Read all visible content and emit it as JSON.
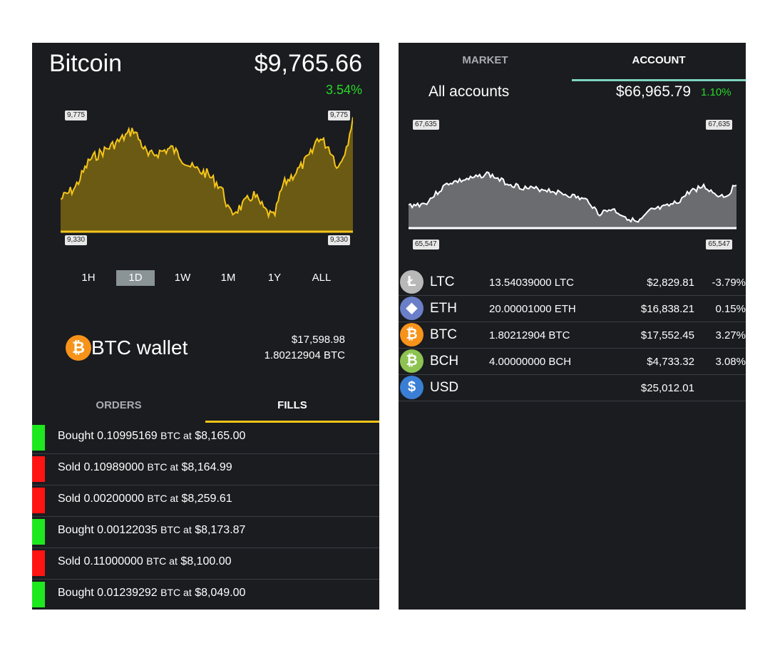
{
  "colors": {
    "background": "#1a1c20",
    "btc_chart": "#f5c518",
    "btc_chart_fill": "#6b5a14",
    "account_chart": "#ffffff",
    "account_chart_fill": "#6a6c70",
    "positive": "#27d827",
    "buy": "#1ee81e",
    "sell": "#ff1414",
    "fills_tab_accent": "#f5c518",
    "account_tab_accent": "#7fd3c0"
  },
  "left": {
    "title": "Bitcoin",
    "price": "$9,765.66",
    "change": "3.54%",
    "chart_labels": {
      "top_left": "9,775",
      "top_right": "9,775",
      "bottom_left": "9,330",
      "bottom_right": "9,330"
    },
    "ranges": [
      "1H",
      "1D",
      "1W",
      "1M",
      "1Y",
      "ALL"
    ],
    "active_range": "1D",
    "wallet": {
      "icon": "bitcoin-icon",
      "label": "BTC wallet",
      "usd": "$17,598.98",
      "btc": "1.80212904 BTC"
    },
    "tabs": [
      "ORDERS",
      "FILLS"
    ],
    "active_tab": "FILLS",
    "fills": [
      {
        "side": "buy",
        "action": "Bought",
        "amount": "0.10995169",
        "unit": "BTC at",
        "price": "$8,165.00"
      },
      {
        "side": "sell",
        "action": "Sold",
        "amount": "0.10989000",
        "unit": "BTC at",
        "price": "$8,164.99"
      },
      {
        "side": "sell",
        "action": "Sold",
        "amount": "0.00200000",
        "unit": "BTC at",
        "price": "$8,259.61"
      },
      {
        "side": "buy",
        "action": "Bought",
        "amount": "0.00122035",
        "unit": "BTC at",
        "price": "$8,173.87"
      },
      {
        "side": "sell",
        "action": "Sold",
        "amount": "0.11000000",
        "unit": "BTC at",
        "price": "$8,100.00"
      },
      {
        "side": "buy",
        "action": "Bought",
        "amount": "0.01239292",
        "unit": "BTC at",
        "price": "$8,049.00"
      }
    ]
  },
  "right": {
    "tabs": [
      "MARKET",
      "ACCOUNT"
    ],
    "active_tab": "ACCOUNT",
    "account_label": "All accounts",
    "total": "$66,965.79",
    "change": "1.10%",
    "chart_labels": {
      "top_left": "67,635",
      "top_right": "67,635",
      "bottom_left": "65,547",
      "bottom_right": "65,547"
    },
    "assets": [
      {
        "icon": "litecoin-icon",
        "color": "#b8b8b8",
        "glyph": "Ł",
        "symbol": "LTC",
        "amount": "13.54039000 LTC",
        "value": "$2,829.81",
        "change": "-3.79%"
      },
      {
        "icon": "ethereum-icon",
        "color": "#6a7fc8",
        "glyph": "◆",
        "symbol": "ETH",
        "amount": "20.00001000 ETH",
        "value": "$16,838.21",
        "change": "0.15%"
      },
      {
        "icon": "bitcoin-icon",
        "color": "#f7931a",
        "glyph": "₿",
        "symbol": "BTC",
        "amount": "1.80212904 BTC",
        "value": "$17,552.45",
        "change": "3.27%"
      },
      {
        "icon": "bitcoin-cash-icon",
        "color": "#8dc351",
        "glyph": "₿",
        "symbol": "BCH",
        "amount": "4.00000000 BCH",
        "value": "$4,733.32",
        "change": "3.08%"
      },
      {
        "icon": "dollar-icon",
        "color": "#3a7fd5",
        "glyph": "$",
        "symbol": "USD",
        "amount": "",
        "value": "$25,012.01",
        "change": ""
      }
    ]
  }
}
